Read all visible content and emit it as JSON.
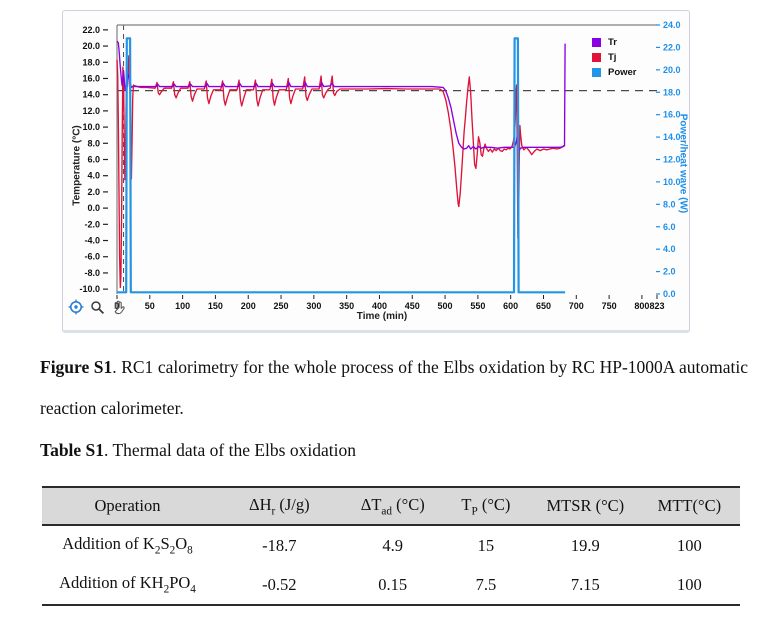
{
  "figure": {
    "caption_label": "Figure S1",
    "caption_text": ". RC1 calorimetry for the whole process of the Elbs oxidation by RC HP-1000A automatic reaction calorimeter."
  },
  "table_caption": {
    "label": "Table S1",
    "text": ". Thermal data of the Elbs oxidation"
  },
  "table": {
    "headers": [
      "Operation",
      "ΔH<sub>r</sub> (J/g)",
      "ΔT<sub>ad</sub> (°C)",
      "T<sub>P</sub> (°C)",
      "MTSR (°C)",
      "MTT(°C)"
    ],
    "rows": [
      {
        "cells": [
          "Addition of K<sub>2</sub>S<sub>2</sub>O<sub>8</sub>",
          "-18.7",
          "4.9",
          "15",
          "19.9",
          "100"
        ]
      },
      {
        "cells": [
          "Addition of KH<sub>2</sub>PO<sub>4</sub>",
          "-0.52",
          "0.15",
          "7.5",
          "7.15",
          "100"
        ]
      }
    ]
  },
  "icons": {
    "reset": "crosshair-icon",
    "zoom": "magnifier-icon",
    "pan": "hand-icon"
  },
  "colors": {
    "tr": "#8a00e0",
    "tj": "#e01238",
    "power": "#2494e4",
    "right_axis_text": "#1e8ee8",
    "frame": "#818181",
    "dashed": "#4a4a4a",
    "header_bg": "#d9d9d9"
  },
  "chart_data": {
    "type": "line",
    "title": "",
    "xlabel": "Time (min)",
    "ylabel_left": "Temperature (°C)",
    "ylabel_right": "Power/heat wave (W)",
    "xlim": [
      0,
      823
    ],
    "ylim_left": [
      -10.6,
      22.6
    ],
    "ylim_right": [
      0,
      24
    ],
    "x_ticks": [
      0,
      50,
      100,
      150,
      200,
      250,
      300,
      350,
      400,
      450,
      500,
      550,
      600,
      650,
      700,
      750,
      800,
      823
    ],
    "y_ticks_left": [
      22,
      20,
      18,
      16,
      14,
      12,
      10,
      8,
      6,
      4,
      2,
      0,
      -2,
      -4,
      -6,
      -8,
      -10
    ],
    "y_ticks_right": [
      24,
      22,
      20,
      18,
      16,
      14,
      12,
      10,
      8,
      6,
      4,
      2,
      0
    ],
    "grid": false,
    "legend_position": "inside top-right",
    "reference_lines": {
      "h_dashed_temperature": 14.5,
      "v_dashed_time": 10
    },
    "series": [
      {
        "name": "Tr",
        "axis": "left",
        "color": "#8a00e0",
        "points": [
          [
            0,
            20.6
          ],
          [
            2,
            20.4
          ],
          [
            3,
            19.6
          ],
          [
            5,
            17.4
          ],
          [
            7,
            15.6
          ],
          [
            8,
            15.1
          ],
          [
            9,
            16.2
          ],
          [
            10,
            16.9
          ],
          [
            11,
            16.0
          ],
          [
            12,
            14.8
          ],
          [
            13,
            14.5
          ],
          [
            14,
            15.1
          ],
          [
            15,
            15.6
          ],
          [
            16,
            15.3
          ],
          [
            17,
            16.1
          ],
          [
            18,
            16.5
          ],
          [
            19,
            16.2
          ],
          [
            20,
            15.5
          ],
          [
            22,
            14.9
          ],
          [
            24,
            15.0
          ],
          [
            27,
            15.1
          ],
          [
            32,
            15.0
          ],
          [
            45,
            15.0
          ],
          [
            60,
            15.0
          ],
          [
            62,
            15.3
          ],
          [
            65,
            15.0
          ],
          [
            85,
            15.0
          ],
          [
            87,
            15.3
          ],
          [
            90,
            15.0
          ],
          [
            110,
            15.0
          ],
          [
            112,
            15.3
          ],
          [
            115,
            15.0
          ],
          [
            135,
            15.0
          ],
          [
            137,
            15.4
          ],
          [
            140,
            15.0
          ],
          [
            160,
            15.0
          ],
          [
            162,
            15.4
          ],
          [
            165,
            15.0
          ],
          [
            185,
            15.0
          ],
          [
            187,
            15.4
          ],
          [
            190,
            15.0
          ],
          [
            210,
            15.0
          ],
          [
            212,
            15.4
          ],
          [
            215,
            15.0
          ],
          [
            235,
            15.0
          ],
          [
            237,
            15.4
          ],
          [
            240,
            15.0
          ],
          [
            260,
            15.0
          ],
          [
            262,
            15.5
          ],
          [
            265,
            15.0
          ],
          [
            285,
            15.0
          ],
          [
            287,
            15.5
          ],
          [
            290,
            15.0
          ],
          [
            310,
            15.0
          ],
          [
            312,
            15.5
          ],
          [
            315,
            15.0
          ],
          [
            325,
            15.1
          ],
          [
            328,
            15.4
          ],
          [
            331,
            15.0
          ],
          [
            350,
            15.0
          ],
          [
            400,
            15.0
          ],
          [
            450,
            15.0
          ],
          [
            480,
            15.0
          ],
          [
            497,
            14.9
          ],
          [
            501,
            14.5
          ],
          [
            505,
            13.6
          ],
          [
            509,
            12.4
          ],
          [
            513,
            10.8
          ],
          [
            517,
            9.2
          ],
          [
            521,
            8.0
          ],
          [
            525,
            7.5
          ],
          [
            529,
            7.3
          ],
          [
            533,
            7.4
          ],
          [
            536,
            7.7
          ],
          [
            539,
            7.3
          ],
          [
            543,
            7.6
          ],
          [
            547,
            7.3
          ],
          [
            551,
            7.6
          ],
          [
            555,
            7.4
          ],
          [
            560,
            7.5
          ],
          [
            570,
            7.5
          ],
          [
            580,
            7.4
          ],
          [
            590,
            7.5
          ],
          [
            600,
            7.5
          ],
          [
            606,
            7.5
          ],
          [
            609,
            8.3
          ],
          [
            610,
            8.9
          ],
          [
            611,
            8.0
          ],
          [
            613,
            7.1
          ],
          [
            615,
            7.4
          ],
          [
            620,
            7.5
          ],
          [
            635,
            7.5
          ],
          [
            650,
            7.5
          ],
          [
            665,
            7.5
          ],
          [
            676,
            7.5
          ],
          [
            680,
            7.6
          ],
          [
            682,
            7.7
          ],
          [
            683,
            20.3
          ]
        ]
      },
      {
        "name": "Tj",
        "axis": "left",
        "color": "#e01238",
        "points": [
          [
            0,
            18.3
          ],
          [
            1,
            16.5
          ],
          [
            2,
            11.0
          ],
          [
            3,
            2.0
          ],
          [
            4,
            -6.0
          ],
          [
            5,
            -9.8
          ],
          [
            6,
            -8.5
          ],
          [
            7,
            -1.0
          ],
          [
            8,
            9.0
          ],
          [
            9,
            17.4
          ],
          [
            10,
            15.8
          ],
          [
            11,
            9.0
          ],
          [
            12,
            3.5
          ],
          [
            13,
            7.5
          ],
          [
            14,
            13.5
          ],
          [
            15,
            16.0
          ],
          [
            16,
            15.0
          ],
          [
            17,
            16.6
          ],
          [
            18,
            18.8
          ],
          [
            19,
            17.6
          ],
          [
            20,
            14.0
          ],
          [
            21,
            8.0
          ],
          [
            22,
            3.6
          ],
          [
            23,
            8.5
          ],
          [
            24,
            13.5
          ],
          [
            25,
            15.2
          ],
          [
            27,
            15.0
          ],
          [
            30,
            15.0
          ],
          [
            36,
            14.9
          ],
          [
            45,
            14.9
          ],
          [
            58,
            14.8
          ],
          [
            61,
            15.5
          ],
          [
            63,
            14.2
          ],
          [
            65,
            14.0
          ],
          [
            68,
            14.4
          ],
          [
            72,
            14.8
          ],
          [
            83,
            14.8
          ],
          [
            86,
            15.6
          ],
          [
            88,
            14.0
          ],
          [
            90,
            13.6
          ],
          [
            93,
            14.2
          ],
          [
            97,
            14.8
          ],
          [
            108,
            14.8
          ],
          [
            111,
            15.6
          ],
          [
            113,
            13.8
          ],
          [
            115,
            13.2
          ],
          [
            118,
            14.0
          ],
          [
            122,
            14.7
          ],
          [
            133,
            14.7
          ],
          [
            136,
            15.7
          ],
          [
            138,
            13.6
          ],
          [
            140,
            12.9
          ],
          [
            143,
            13.8
          ],
          [
            147,
            14.6
          ],
          [
            158,
            14.6
          ],
          [
            161,
            15.7
          ],
          [
            163,
            13.4
          ],
          [
            165,
            12.7
          ],
          [
            168,
            13.6
          ],
          [
            172,
            14.6
          ],
          [
            183,
            14.6
          ],
          [
            186,
            15.8
          ],
          [
            188,
            13.4
          ],
          [
            190,
            12.6
          ],
          [
            193,
            13.5
          ],
          [
            197,
            14.6
          ],
          [
            208,
            14.6
          ],
          [
            211,
            15.8
          ],
          [
            213,
            13.4
          ],
          [
            215,
            12.6
          ],
          [
            218,
            13.6
          ],
          [
            222,
            14.6
          ],
          [
            233,
            14.6
          ],
          [
            236,
            15.9
          ],
          [
            238,
            13.5
          ],
          [
            240,
            12.7
          ],
          [
            243,
            13.7
          ],
          [
            247,
            14.6
          ],
          [
            258,
            14.6
          ],
          [
            261,
            16.0
          ],
          [
            263,
            13.6
          ],
          [
            265,
            12.9
          ],
          [
            268,
            13.8
          ],
          [
            272,
            14.7
          ],
          [
            283,
            14.7
          ],
          [
            286,
            16.2
          ],
          [
            288,
            13.8
          ],
          [
            290,
            13.3
          ],
          [
            293,
            14.0
          ],
          [
            297,
            14.7
          ],
          [
            308,
            14.7
          ],
          [
            311,
            16.3
          ],
          [
            313,
            14.0
          ],
          [
            315,
            13.6
          ],
          [
            318,
            14.2
          ],
          [
            322,
            14.7
          ],
          [
            325,
            14.8
          ],
          [
            328,
            16.3
          ],
          [
            330,
            14.2
          ],
          [
            332,
            13.9
          ],
          [
            335,
            14.4
          ],
          [
            340,
            14.7
          ],
          [
            355,
            14.7
          ],
          [
            380,
            14.7
          ],
          [
            410,
            14.75
          ],
          [
            440,
            14.7
          ],
          [
            470,
            14.7
          ],
          [
            492,
            14.7
          ],
          [
            497,
            14.4
          ],
          [
            501,
            13.4
          ],
          [
            505,
            11.8
          ],
          [
            509,
            9.6
          ],
          [
            512,
            7.6
          ],
          [
            515,
            5.2
          ],
          [
            518,
            2.2
          ],
          [
            520,
            0.5
          ],
          [
            521,
            0.2
          ],
          [
            523,
            1.8
          ],
          [
            525,
            4.2
          ],
          [
            527,
            6.8
          ],
          [
            529,
            9.4
          ],
          [
            531,
            11.2
          ],
          [
            533,
            13.2
          ],
          [
            535,
            14.9
          ],
          [
            537,
            16.2
          ],
          [
            539,
            14.2
          ],
          [
            541,
            11.0
          ],
          [
            543,
            8.2
          ],
          [
            545,
            5.4
          ],
          [
            547,
            4.9
          ],
          [
            549,
            6.6
          ],
          [
            551,
            8.8
          ],
          [
            553,
            8.1
          ],
          [
            555,
            6.6
          ],
          [
            557,
            6.4
          ],
          [
            559,
            7.3
          ],
          [
            561,
            7.9
          ],
          [
            563,
            7.4
          ],
          [
            566,
            7.0
          ],
          [
            569,
            7.3
          ],
          [
            572,
            6.9
          ],
          [
            575,
            7.3
          ],
          [
            578,
            7.1
          ],
          [
            581,
            7.4
          ],
          [
            584,
            7.1
          ],
          [
            587,
            7.0
          ],
          [
            590,
            7.3
          ],
          [
            593,
            7.2
          ],
          [
            596,
            7.4
          ],
          [
            599,
            7.3
          ],
          [
            602,
            7.6
          ],
          [
            604,
            8.2
          ],
          [
            606,
            9.2
          ],
          [
            607,
            11.0
          ],
          [
            608,
            14.2
          ],
          [
            609,
            15.2
          ],
          [
            610,
            8.0
          ],
          [
            611,
            -3.7
          ],
          [
            612,
            -1.5
          ],
          [
            613,
            5.5
          ],
          [
            614,
            10.2
          ],
          [
            615,
            9.2
          ],
          [
            617,
            7.7
          ],
          [
            620,
            7.2
          ],
          [
            624,
            7.5
          ],
          [
            628,
            7.1
          ],
          [
            632,
            6.6
          ],
          [
            636,
            7.0
          ],
          [
            640,
            7.3
          ],
          [
            645,
            7.1
          ],
          [
            650,
            7.3
          ],
          [
            655,
            7.2
          ],
          [
            660,
            7.3
          ],
          [
            665,
            7.4
          ],
          [
            670,
            7.3
          ],
          [
            675,
            7.4
          ],
          [
            678,
            7.5
          ],
          [
            681,
            7.7
          ],
          [
            683,
            7.7
          ]
        ]
      },
      {
        "name": "Power",
        "axis": "right",
        "color": "#2494e4",
        "points": [
          [
            0,
            0.15
          ],
          [
            14,
            0.15
          ],
          [
            15,
            22.8
          ],
          [
            20,
            22.8
          ],
          [
            21,
            0.15
          ],
          [
            60,
            0.15
          ],
          [
            200,
            0.15
          ],
          [
            400,
            0.15
          ],
          [
            550,
            0.15
          ],
          [
            605,
            0.15
          ],
          [
            606,
            22.8
          ],
          [
            611,
            22.8
          ],
          [
            612,
            0.15
          ],
          [
            630,
            0.15
          ],
          [
            683,
            0.15
          ]
        ]
      }
    ]
  }
}
